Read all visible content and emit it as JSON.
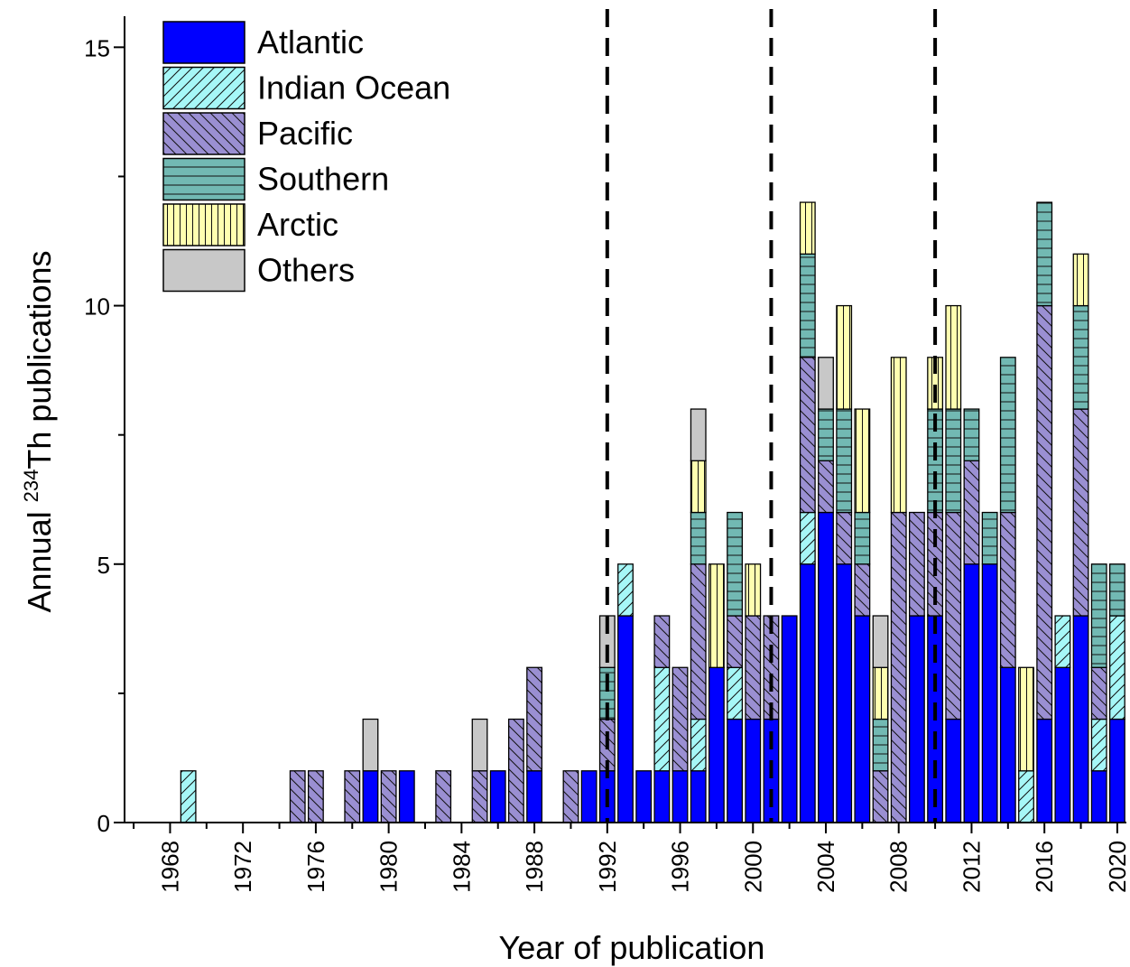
{
  "chart_data": {
    "type": "bar",
    "stacked": true,
    "xlabel": "Year of publication",
    "ylabel_prefix": "Annual ",
    "ylabel_superscript": "234",
    "ylabel_suffix": "Th publications",
    "x_start": 1967,
    "x_end": 2020,
    "xlim": [
      1965.5,
      2020.5
    ],
    "ylim": [
      0,
      15.6
    ],
    "yticks": [
      0,
      5,
      10,
      15
    ],
    "xtick_labels": [
      "1968",
      "1972",
      "1976",
      "1980",
      "1984",
      "1988",
      "1992",
      "1996",
      "2000",
      "2004",
      "2008",
      "2012",
      "2016",
      "2020"
    ],
    "vlines": [
      1992,
      2001,
      2010
    ],
    "legend_position": "top-left",
    "series": [
      {
        "name": "Atlantic",
        "color": "#0000ff",
        "pattern": "solid",
        "values": [
          0,
          0,
          0,
          0,
          0,
          0,
          0,
          0,
          0,
          0,
          0,
          0,
          1,
          0,
          1,
          0,
          0,
          0,
          0,
          1,
          0,
          1,
          0,
          0,
          1,
          1,
          4,
          1,
          1,
          1,
          1,
          3,
          2,
          2,
          2,
          4,
          5,
          6,
          5,
          4,
          0,
          0,
          4,
          4,
          2,
          5,
          5,
          3,
          0,
          2,
          3,
          4,
          1,
          2
        ]
      },
      {
        "name": "Indian Ocean",
        "color": "#a6f7f7",
        "pattern": "diag-up",
        "values": [
          0,
          0,
          1,
          0,
          0,
          0,
          0,
          0,
          0,
          0,
          0,
          0,
          0,
          0,
          0,
          0,
          0,
          0,
          0,
          0,
          0,
          0,
          0,
          0,
          0,
          0,
          1,
          0,
          2,
          0,
          1,
          0,
          1,
          0,
          0,
          0,
          1,
          0,
          0,
          0,
          0,
          0,
          0,
          0,
          0,
          0,
          0,
          0,
          1,
          0,
          1,
          0,
          1,
          2
        ]
      },
      {
        "name": "Pacific",
        "color": "#9a8fd2",
        "pattern": "diag-down",
        "values": [
          0,
          0,
          0,
          0,
          0,
          0,
          0,
          0,
          1,
          1,
          0,
          1,
          0,
          1,
          0,
          0,
          1,
          0,
          1,
          0,
          2,
          2,
          0,
          1,
          0,
          1,
          0,
          0,
          1,
          2,
          3,
          0,
          1,
          2,
          2,
          0,
          3,
          1,
          1,
          1,
          1,
          6,
          2,
          2,
          4,
          2,
          0,
          3,
          0,
          8,
          0,
          4,
          1,
          0
        ]
      },
      {
        "name": "Southern",
        "color": "#72b9b3",
        "pattern": "horizontal",
        "values": [
          0,
          0,
          0,
          0,
          0,
          0,
          0,
          0,
          0,
          0,
          0,
          0,
          0,
          0,
          0,
          0,
          0,
          0,
          0,
          0,
          0,
          0,
          0,
          0,
          0,
          1,
          0,
          0,
          0,
          0,
          1,
          0,
          2,
          0,
          0,
          0,
          2,
          1,
          2,
          1,
          1,
          0,
          0,
          2,
          2,
          1,
          1,
          3,
          0,
          2,
          0,
          2,
          2,
          1
        ]
      },
      {
        "name": "Arctic",
        "color": "#ffffb0",
        "pattern": "vertical",
        "values": [
          0,
          0,
          0,
          0,
          0,
          0,
          0,
          0,
          0,
          0,
          0,
          0,
          0,
          0,
          0,
          0,
          0,
          0,
          0,
          0,
          0,
          0,
          0,
          0,
          0,
          0,
          0,
          0,
          0,
          0,
          1,
          2,
          0,
          1,
          0,
          0,
          1,
          0,
          2,
          2,
          1,
          3,
          0,
          1,
          2,
          0,
          0,
          0,
          2,
          0,
          0,
          1,
          0,
          0
        ]
      },
      {
        "name": "Others",
        "color": "#c8c8c8",
        "pattern": "solid",
        "values": [
          0,
          0,
          0,
          0,
          0,
          0,
          0,
          0,
          0,
          0,
          0,
          0,
          1,
          0,
          0,
          0,
          0,
          0,
          1,
          0,
          0,
          0,
          0,
          0,
          0,
          1,
          0,
          0,
          0,
          0,
          1,
          0,
          0,
          0,
          0,
          0,
          0,
          1,
          0,
          0,
          1,
          0,
          0,
          0,
          0,
          0,
          0,
          0,
          0,
          0,
          0,
          0,
          0,
          0
        ]
      }
    ]
  }
}
